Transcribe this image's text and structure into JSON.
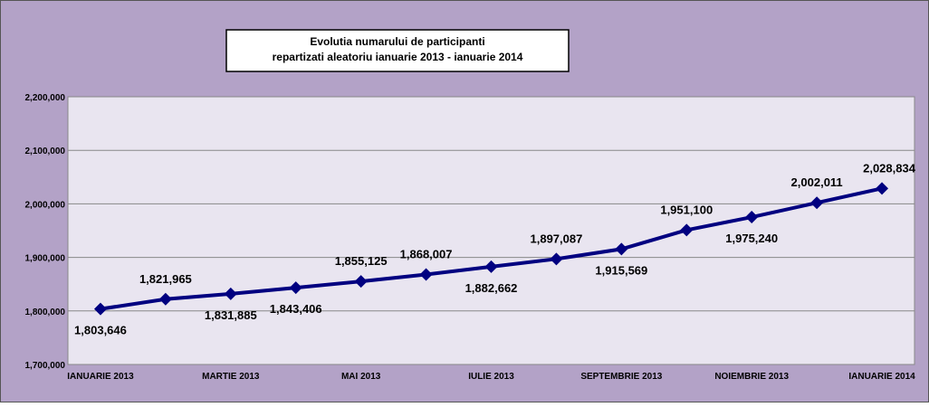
{
  "chart_data": {
    "type": "line",
    "title": [
      "Evolutia numarului de participanti",
      "repartizati aleatoriu ianuarie 2013 - ianuarie 2014"
    ],
    "categories": [
      "IANUARIE  2013",
      null,
      "MARTIE 2013",
      null,
      "MAI  2013",
      null,
      "IULIE  2013",
      null,
      "SEPTEMBRIE  2013",
      null,
      "NOIEMBRIE  2013",
      null,
      "IANUARIE  2014"
    ],
    "series": [
      {
        "color": "#000080",
        "values": [
          1803646,
          1821965,
          1831885,
          1843406,
          1855125,
          1868007,
          1882662,
          1897087,
          1915569,
          1951100,
          1975240,
          2002011,
          2028834
        ],
        "value_labels": [
          "1,803,646",
          "1,821,965",
          "1,831,885",
          "1,843,406",
          "1,855,125",
          "1,868,007",
          "1,882,662",
          "1,897,087",
          "1,915,569",
          "1,951,100",
          "1,975,240",
          "2,002,011",
          "2,028,834"
        ]
      }
    ],
    "ylim": [
      1700000,
      2200000
    ],
    "yticks": [
      {
        "value": 1700000,
        "label": "1,700,000"
      },
      {
        "value": 1800000,
        "label": "1,800,000"
      },
      {
        "value": 1900000,
        "label": "1,900,000"
      },
      {
        "value": 2000000,
        "label": "2,000,000"
      },
      {
        "value": 2100000,
        "label": "2,100,000"
      },
      {
        "value": 2200000,
        "label": "2,200,000"
      }
    ],
    "grid": true
  }
}
